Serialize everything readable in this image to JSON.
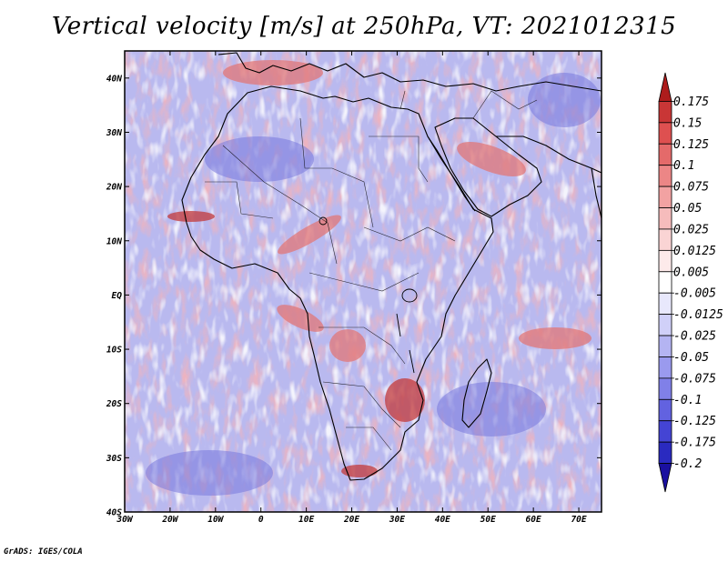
{
  "title": "Vertical velocity [m/s] at 250hPa, VT: 2021012315",
  "credit": "GrADS: IGES/COLA",
  "map": {
    "lon_range": [
      -30,
      75
    ],
    "lat_range": [
      -40,
      45
    ],
    "lon_ticks": [
      "30W",
      "20W",
      "10W",
      "0",
      "10E",
      "20E",
      "30E",
      "40E",
      "50E",
      "60E",
      "70E"
    ],
    "lat_ticks": [
      "40N",
      "30N",
      "20N",
      "10N",
      "EQ",
      "10S",
      "20S",
      "30S",
      "40S"
    ]
  },
  "colorbar": {
    "levels": [
      "0.175",
      "0.15",
      "0.125",
      "0.1",
      "0.075",
      "0.05",
      "0.025",
      "0.0125",
      "0.005",
      "-0.005",
      "-0.0125",
      "-0.025",
      "-0.05",
      "-0.075",
      "-0.1",
      "-0.125",
      "-0.175",
      "-0.2"
    ],
    "colors": [
      "#ad1c1c",
      "#c93636",
      "#de5050",
      "#e46a6a",
      "#ec8686",
      "#f2a2a2",
      "#f6bcbc",
      "#fad4d4",
      "#fdeaea",
      "#ffffff",
      "#e8e8fc",
      "#d0d0f8",
      "#b4b4f2",
      "#9a9aee",
      "#8080e8",
      "#6262e0",
      "#4444d4",
      "#2a2ac0",
      "#1a10a0"
    ]
  },
  "style": {
    "frame_color": "#000000",
    "ocean_base": "#b9b9ef",
    "positive_color": "#e27777",
    "negative_color": "#7878dd"
  }
}
